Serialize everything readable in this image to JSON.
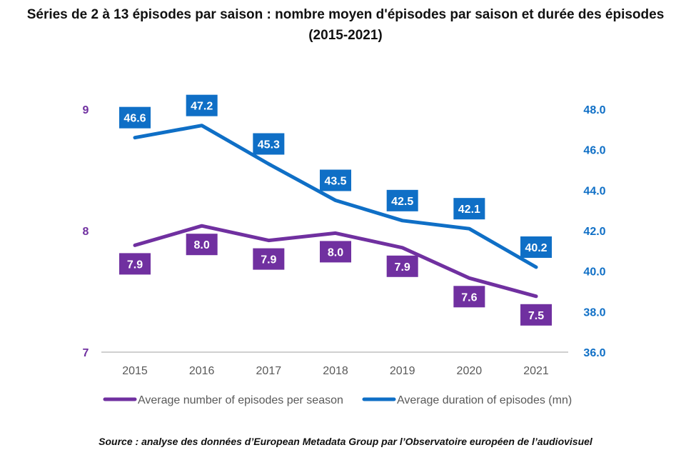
{
  "title_line1": "Séries de 2 à 13 épisodes par saison : nombre moyen d'épisodes par saison et durée des épisodes",
  "title_line2": "(2015-2021)",
  "source": "Source : analyse des données d’European Metadata Group par l’Observatoire européen de l’audiovisuel",
  "chart_data": {
    "type": "line",
    "title": "Séries de 2 à 13 épisodes par saison : nombre moyen d'épisodes par saison et durée des épisodes (2015-2021)",
    "categories": [
      "2015",
      "2016",
      "2017",
      "2018",
      "2019",
      "2020",
      "2021"
    ],
    "series": [
      {
        "name": "Average number of episodes per season",
        "axis": "left",
        "color": "#7030A0",
        "values": [
          7.88,
          8.04,
          7.92,
          7.98,
          7.86,
          7.61,
          7.46
        ],
        "labels": [
          "7.9",
          "8.0",
          "7.9",
          "8.0",
          "7.9",
          "7.6",
          "7.5"
        ]
      },
      {
        "name": "Average duration of episodes (mn)",
        "axis": "right",
        "color": "#0F6FC6",
        "values": [
          46.6,
          47.2,
          45.3,
          43.5,
          42.5,
          42.1,
          40.2
        ],
        "labels": [
          "46.6",
          "47.2",
          "45.3",
          "43.5",
          "42.5",
          "42.1",
          "40.2"
        ]
      }
    ],
    "left_axis": {
      "min": 7,
      "max": 9,
      "ticks": [
        "7",
        "8",
        "9"
      ],
      "color": "#7030A0"
    },
    "right_axis": {
      "min": 36,
      "max": 48,
      "ticks": [
        "36.0",
        "38.0",
        "40.0",
        "42.0",
        "44.0",
        "46.0",
        "48.0"
      ],
      "color": "#0F6FC6"
    },
    "xlabel": "",
    "ylabel": "",
    "grid": false,
    "legend": "bottom"
  }
}
